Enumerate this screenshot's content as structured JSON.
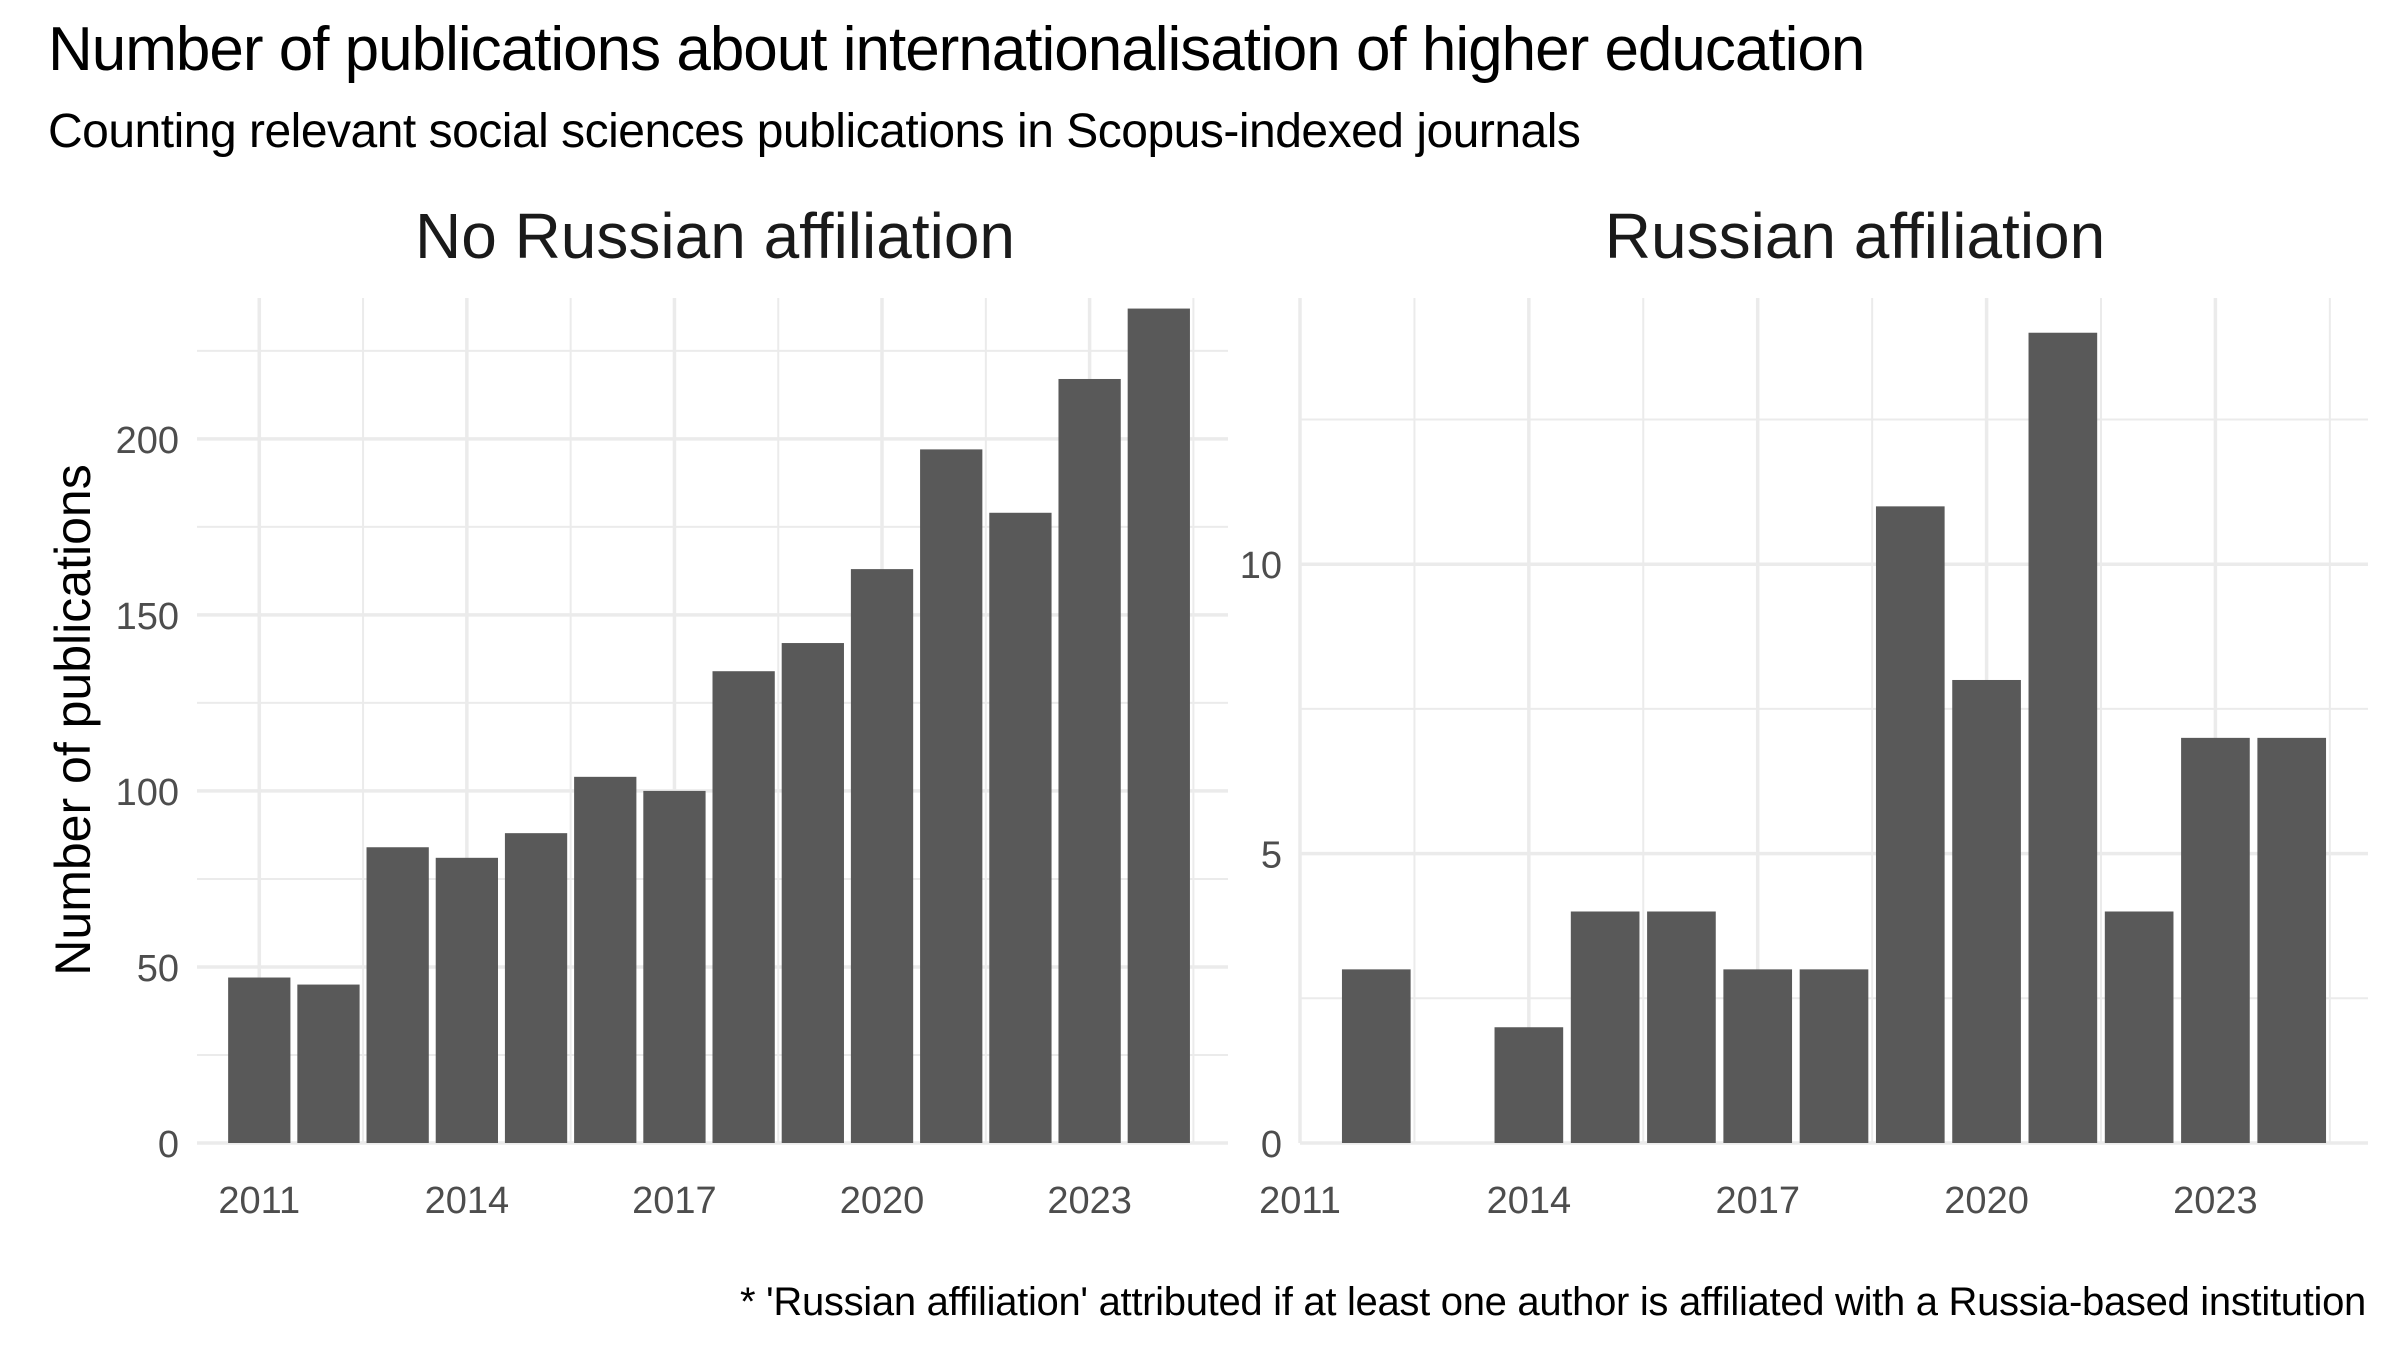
{
  "title": "Number of publications about internationalisation of higher education",
  "subtitle": "Counting relevant social sciences publications in Scopus-indexed journals",
  "caption": "* 'Russian affiliation' attributed if at least one author is affiliated with a Russia-based institution",
  "colors": {
    "bar": "#595959",
    "grid": "#ebebeb",
    "axis_text": "#4d4d4d",
    "background": "#ffffff"
  },
  "chart_data": [
    {
      "type": "bar",
      "title": "No Russian affiliation",
      "xlabel": "",
      "ylabel": "Number of publications",
      "x": [
        2011,
        2012,
        2013,
        2014,
        2015,
        2016,
        2017,
        2018,
        2019,
        2020,
        2021,
        2022,
        2023,
        2024
      ],
      "values": [
        47,
        45,
        84,
        81,
        88,
        104,
        100,
        134,
        142,
        163,
        197,
        179,
        217,
        237
      ],
      "x_ticks": [
        2011,
        2014,
        2017,
        2020,
        2023
      ],
      "y_ticks": [
        0,
        50,
        100,
        150,
        200
      ],
      "xlim": [
        2010.1,
        2025.0
      ],
      "ylim": [
        0,
        240
      ],
      "grid": true
    },
    {
      "type": "bar",
      "title": "Russian affiliation",
      "xlabel": "",
      "ylabel": "",
      "x": [
        2011,
        2012,
        2013,
        2014,
        2015,
        2016,
        2017,
        2018,
        2019,
        2020,
        2021,
        2022,
        2023,
        2024
      ],
      "values": [
        0,
        3,
        0,
        2,
        4,
        4,
        3,
        3,
        11,
        8,
        14,
        4,
        7,
        7
      ],
      "x_ticks": [
        2011,
        2014,
        2017,
        2020,
        2023
      ],
      "y_ticks": [
        0,
        5,
        10
      ],
      "xlim": [
        2011.0,
        2025.0
      ],
      "ylim": [
        0,
        14.6
      ],
      "grid": true
    }
  ]
}
